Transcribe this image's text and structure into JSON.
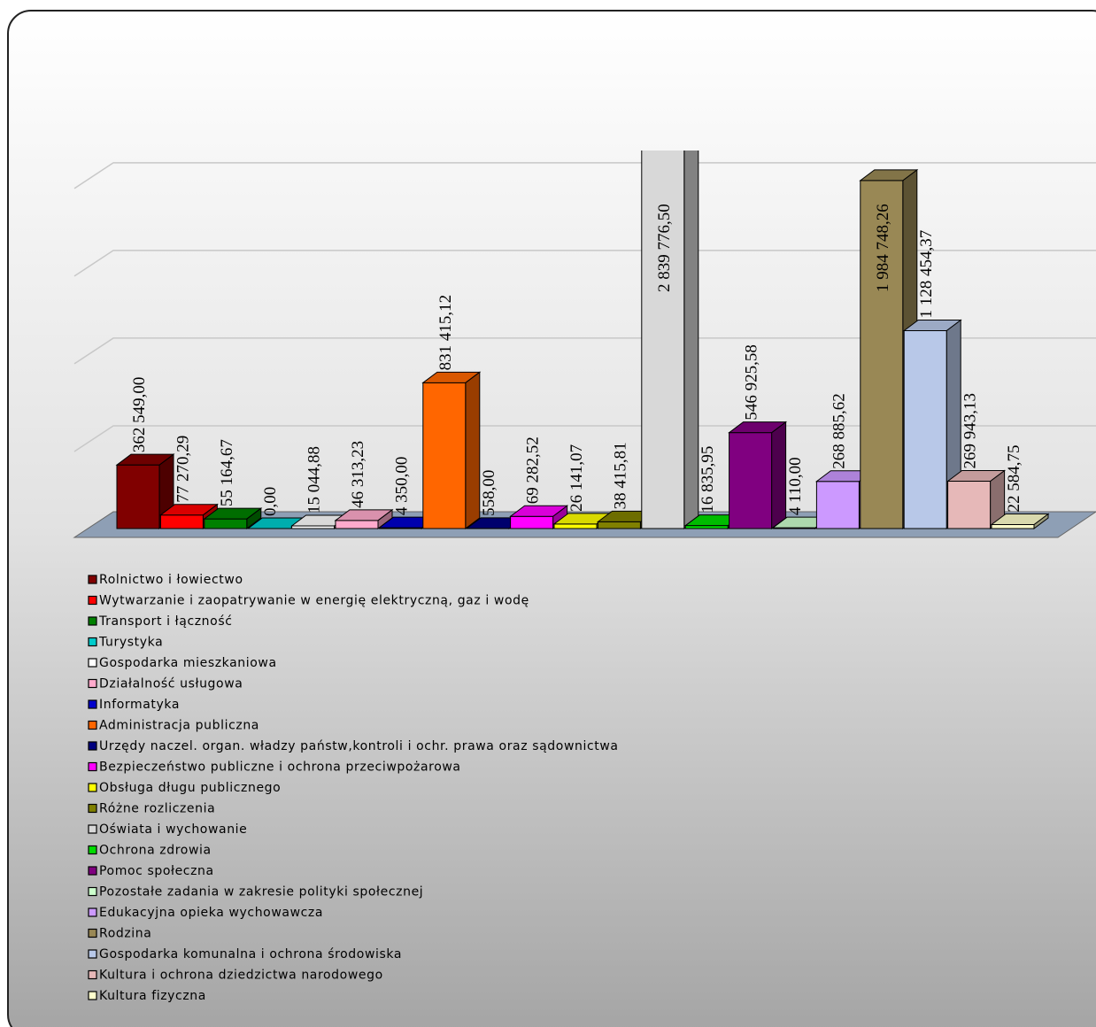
{
  "chart_data": {
    "type": "bar3d",
    "categories": [
      "Rolnictwo i łowiectwo",
      "Wytwarzanie i zaopatrywanie w energię elektryczną, gaz i wodę",
      "Transport i łączność",
      "Turystyka",
      "Gospodarka mieszkaniowa",
      "Działalność usługowa",
      "Informatyka",
      "Administracja publiczna",
      "Urzędy naczel. organ. władzy państw,kontroli i ochr. prawa oraz sądownictwa",
      "Bezpieczeństwo publiczne i ochrona przeciwpożarowa",
      "Obsługa długu publicznego",
      "Różne rozliczenia",
      "Oświata i wychowanie",
      "Ochrona zdrowia",
      "Pomoc społeczna",
      "Pozostałe zadania w zakresie polityki społecznej",
      "Edukacyjna opieka wychowawcza",
      "Rodzina",
      "Gospodarka komunalna i ochrona środowiska",
      "Kultura i ochrona dziedzictwa narodowego",
      "Kultura fizyczna"
    ],
    "values": [
      362549.0,
      77270.29,
      55164.67,
      0.0,
      15044.88,
      46313.23,
      4350.0,
      831415.12,
      558.0,
      69282.52,
      26141.07,
      38415.81,
      2839776.5,
      16835.95,
      546925.58,
      4110.0,
      268885.62,
      1984748.26,
      1128454.37,
      269943.13,
      22584.75
    ],
    "value_labels": [
      "362 549,00",
      "77 270,29",
      "55 164,67",
      "0,00",
      "15 044,88",
      "46 313,23",
      "4 350,00",
      "831 415,12",
      "558,00",
      "69 282,52",
      "26 141,07",
      "38 415,81",
      "2 839 776,50",
      "16 835,95",
      "546 925,58",
      "4 110,00",
      "268 885,62",
      "1 984 748,26",
      "1 128 454,37",
      "269 943,13",
      "22 584,75"
    ],
    "colors": [
      "#800000",
      "#ff0000",
      "#008000",
      "#00cccc",
      "#ffffff",
      "#ffaacc",
      "#0000cc",
      "#ff6600",
      "#000080",
      "#ff00ff",
      "#ffff00",
      "#808000",
      "#d8d8d8",
      "#00dd00",
      "#800080",
      "#ccffcc",
      "#cc99ff",
      "#998855",
      "#b8c8e8",
      "#e6b8b8",
      "#ffffcc"
    ],
    "ylim": [
      0,
      2080000
    ],
    "yticks": [
      0,
      500000,
      1000000,
      1500000,
      2000000
    ],
    "grid": true
  }
}
